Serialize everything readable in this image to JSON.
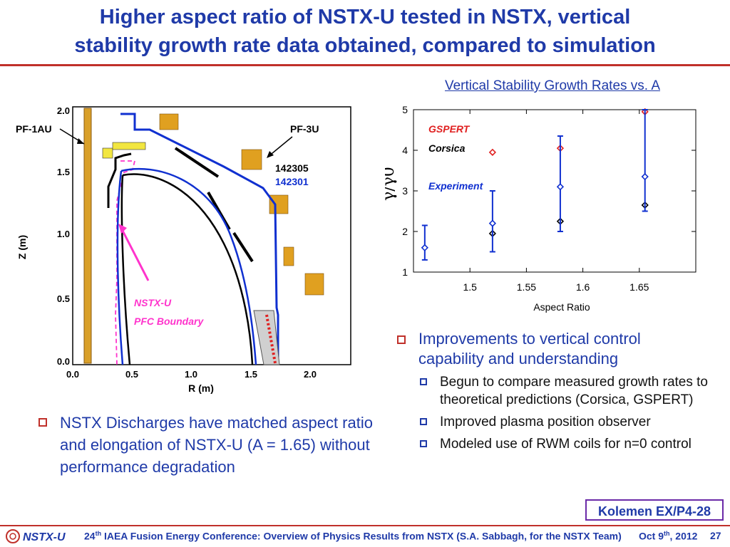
{
  "slide": {
    "title_line1": "Higher aspect ratio of NSTX-U tested in NSTX, vertical",
    "title_line2": "stability growth rate data obtained, compared to simulation"
  },
  "left_plot": {
    "ylabel": "Z (m)",
    "xlabel": "R (m)",
    "y_ticks": [
      "2.0",
      "1.5",
      "1.0",
      "0.5",
      "0.0"
    ],
    "x_ticks": [
      "0.0",
      "0.5",
      "1.0",
      "1.5",
      "2.0"
    ],
    "labels": {
      "pf1au": "PF-1AU",
      "pf3u": "PF-3U",
      "shot1": "142305",
      "shot2": "142301",
      "nstxu": "NSTX-U",
      "pfc": "PFC Boundary"
    },
    "colors": {
      "shot1": "#000000",
      "shot2": "#1030d0",
      "pfc": "#ff33cc",
      "coil": "#e0a020"
    }
  },
  "chart_data": {
    "type": "scatter",
    "title": "Vertical Stability Growth Rates vs. A",
    "xlabel": "Aspect Ratio",
    "ylabel": "γ/γ0",
    "xlim": [
      1.45,
      1.7
    ],
    "ylim": [
      1,
      5
    ],
    "x_ticks": [
      1.5,
      1.55,
      1.6,
      1.65
    ],
    "y_ticks": [
      1,
      2,
      3,
      4,
      5
    ],
    "grid": false,
    "legend_entries": [
      "GSPERT",
      "Corsica",
      "Experiment"
    ],
    "legend_placement": "top-left",
    "series": [
      {
        "name": "GSPERT",
        "color": "#e02020",
        "points": [
          [
            1.52,
            3.95
          ],
          [
            1.58,
            4.05
          ],
          [
            1.655,
            4.95
          ]
        ]
      },
      {
        "name": "Corsica",
        "color": "#000000",
        "points": [
          [
            1.52,
            1.95
          ],
          [
            1.58,
            2.25
          ],
          [
            1.655,
            2.65
          ]
        ]
      },
      {
        "name": "Experiment",
        "color": "#1030d0",
        "points": [
          [
            1.46,
            1.6,
            1.3,
            2.15
          ],
          [
            1.52,
            2.2,
            1.5,
            3.0
          ],
          [
            1.58,
            3.1,
            2.0,
            4.35
          ],
          [
            1.655,
            3.35,
            2.5,
            5.0
          ]
        ]
      }
    ]
  },
  "bullets": {
    "right_main_l1": "Improvements to vertical control",
    "right_main_l2": "capability and understanding",
    "right_sub1": "Begun to compare measured growth rates to theoretical predictions (Corsica, GSPERT)",
    "right_sub2": "Improved plasma position observer",
    "right_sub3": "Modeled use of RWM coils for n=0 control",
    "left_main": "NSTX Discharges have matched aspect ratio and elongation of NSTX-U (A = 1.65) without performance degradation"
  },
  "badge": "Kolemen EX/P4-28",
  "footer": {
    "logo": "NSTX-U",
    "text_pre": "24",
    "text_sup": "th",
    "text_post": " IAEA Fusion Energy Conference: Overview of Physics Results from NSTX (S.A. Sabbagh, for the NSTX Team)",
    "date_pre": "Oct 9",
    "date_sup": "th",
    "date_post": ", 2012",
    "page": "27"
  }
}
